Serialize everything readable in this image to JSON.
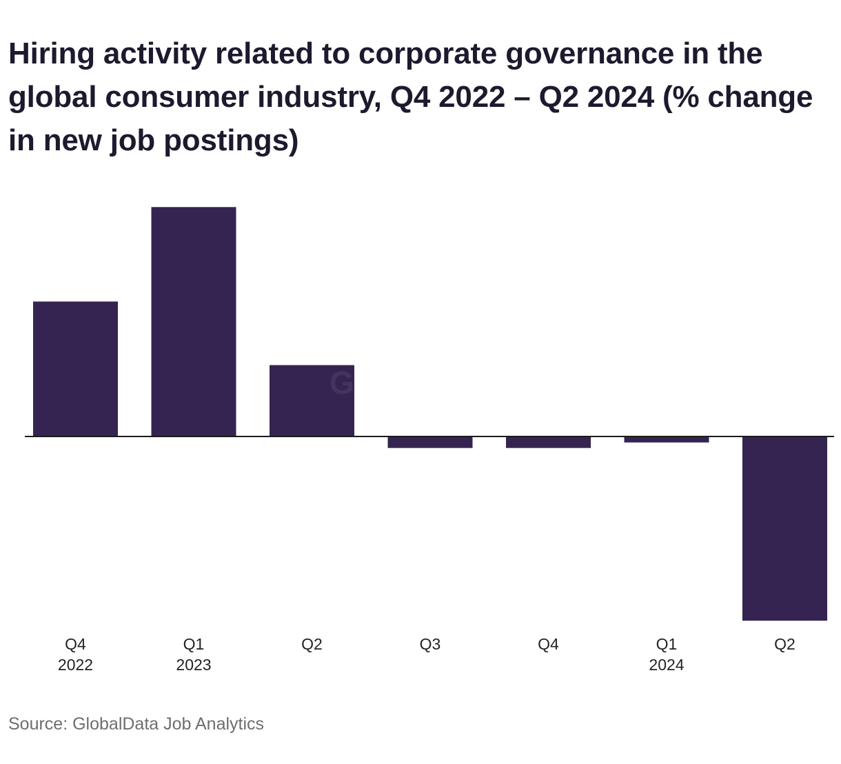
{
  "title": "Hiring activity related to corporate governance in the global consumer industry, Q4 2022 – Q2 2024 (% change in new job postings)",
  "watermark": "GlobalData",
  "source": "Source: GlobalData Job Analytics",
  "colors": {
    "bar": "#352451",
    "axis": "#1a1a1a",
    "source_text": "#6e6e6e"
  },
  "chart_data": {
    "type": "bar",
    "categories": [
      {
        "line1": "Q4",
        "line2": "2022"
      },
      {
        "line1": "Q1",
        "line2": "2023"
      },
      {
        "line1": "Q2",
        "line2": ""
      },
      {
        "line1": "Q3",
        "line2": ""
      },
      {
        "line1": "Q4",
        "line2": ""
      },
      {
        "line1": "Q1",
        "line2": "2024"
      },
      {
        "line1": "Q2",
        "line2": ""
      }
    ],
    "values": [
      29.3,
      49.8,
      15.5,
      -2.5,
      -2.5,
      -1.3,
      -40
    ],
    "title": "Hiring activity related to corporate governance in the global consumer industry, Q4 2022 – Q2 2024 (% change in new job postings)",
    "xlabel": "",
    "ylabel": "",
    "ylim": [
      -44,
      56
    ],
    "grid": false,
    "legend": "none",
    "zero_line": true
  }
}
